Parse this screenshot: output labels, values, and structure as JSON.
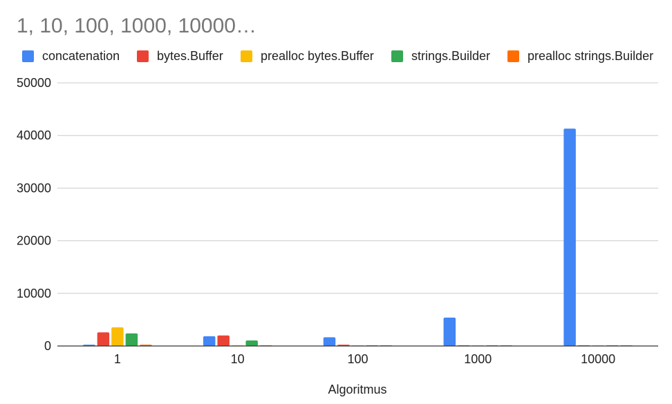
{
  "chart_data": {
    "type": "bar",
    "title": "1, 10, 100, 1000, 10000…",
    "xlabel": "Algoritmus",
    "ylabel": "",
    "ylim": [
      0,
      50000
    ],
    "yticks": [
      "0",
      "10000",
      "20000",
      "30000",
      "40000",
      "50000"
    ],
    "categories": [
      "1",
      "10",
      "100",
      "1000",
      "10000"
    ],
    "grid": true,
    "legend_position": "top",
    "series": [
      {
        "name": "concatenation",
        "color": "#4285f4",
        "values": [
          250,
          1850,
          1650,
          5400,
          41300
        ]
      },
      {
        "name": "bytes.Buffer",
        "color": "#ea4335",
        "values": [
          2600,
          2000,
          250,
          60,
          60
        ]
      },
      {
        "name": "prealloc bytes.Buffer",
        "color": "#fbbc04",
        "values": [
          3550,
          80,
          60,
          50,
          50
        ]
      },
      {
        "name": "strings.Builder",
        "color": "#34a853",
        "values": [
          2400,
          1050,
          60,
          50,
          50
        ]
      },
      {
        "name": "prealloc strings.Builder",
        "color": "#ff6d01",
        "values": [
          250,
          120,
          60,
          60,
          60
        ]
      }
    ]
  }
}
